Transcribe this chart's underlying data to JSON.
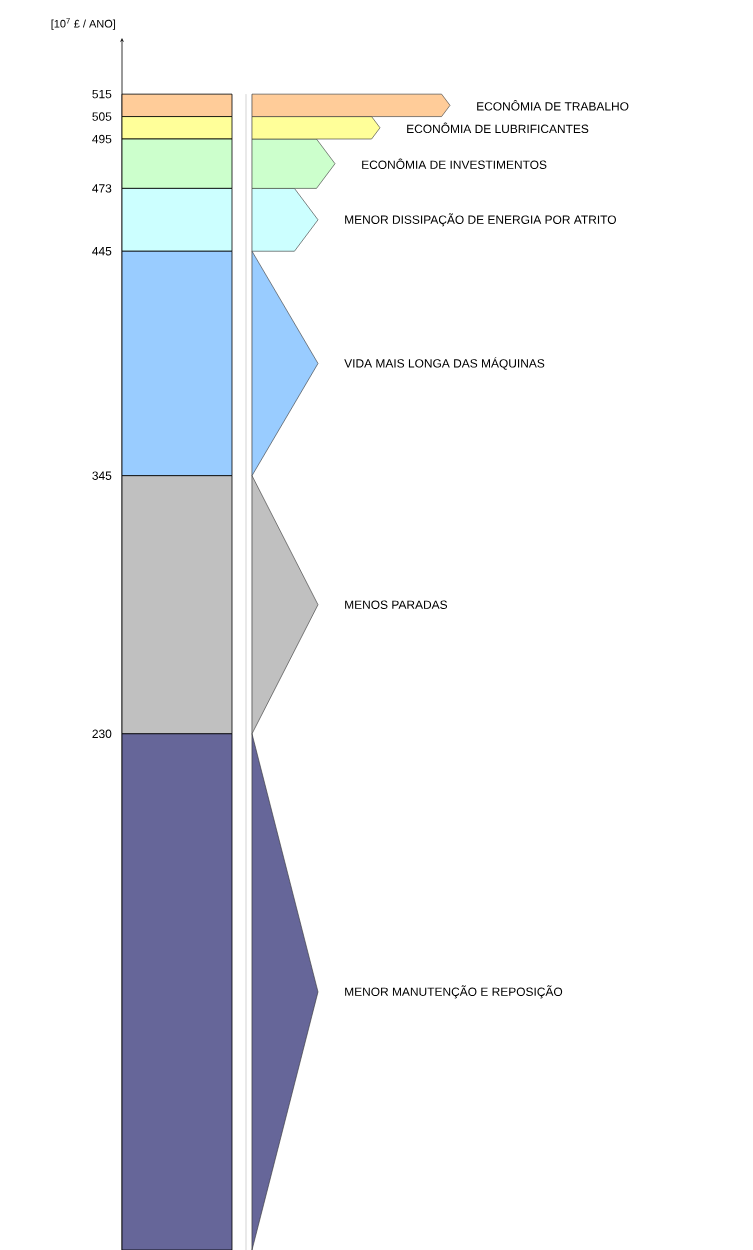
{
  "chart_data": {
    "type": "bar",
    "stacked": true,
    "categories": [
      null
    ],
    "ylabel": "[10$^{7}$ £ / ANO]",
    "ylim": [
      0,
      540
    ],
    "yticks": [
      230,
      345,
      445,
      473,
      495,
      505,
      515
    ],
    "series": [
      {
        "name": "MENOR MANUTENÇÃO E REPOSIÇÃO",
        "color": "#666699",
        "values": [
          230
        ]
      },
      {
        "name": "MENOS PARADAS",
        "color": "#c0c0c0",
        "values": [
          115
        ]
      },
      {
        "name": "VIDA MAIS LONGA DAS MÁQUINAS",
        "color": "#99ccff",
        "values": [
          100
        ]
      },
      {
        "name": "MENOR DISSIPAÇÃO DE ENERGIA POR ATRITO",
        "color": "#ccffff",
        "values": [
          28
        ]
      },
      {
        "name": "ECONÔMIA DE INVESTIMENTOS",
        "color": "#ccffcc",
        "values": [
          22
        ]
      },
      {
        "name": "ECONÔMIA DE LUBRIFICANTES",
        "color": "#ffff99",
        "values": [
          10
        ]
      },
      {
        "name": "ECONÔMIA DE TRABALHO",
        "color": "#ffcc99",
        "values": [
          10
        ]
      }
    ]
  }
}
